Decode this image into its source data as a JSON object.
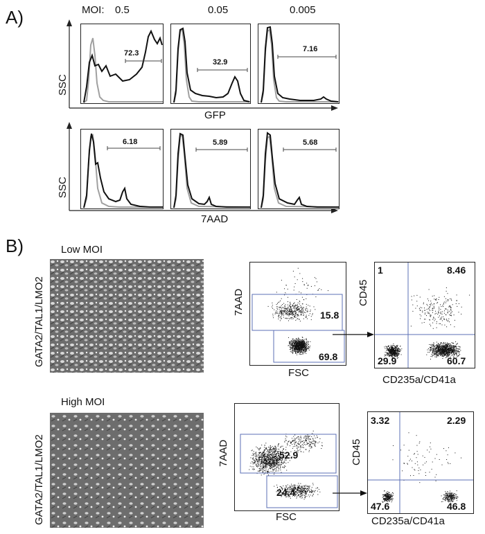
{
  "panel_a": {
    "letter": "A)",
    "moi_label": "MOI:",
    "moi_values": [
      "0.5",
      "0.05",
      "0.005"
    ],
    "y_label": "SSC",
    "row1_xlabel": "GFP",
    "row2_xlabel": "7AAD",
    "row1_gates": [
      "72.3",
      "32.9",
      "7.16"
    ],
    "row2_gates": [
      "6.18",
      "5.89",
      "5.68"
    ]
  },
  "panel_b": {
    "letter": "B)",
    "rotated_label": "GATA2/TAL1/LMO2",
    "rows": [
      {
        "condition": "Low MOI",
        "scatter1": {
          "xlabel": "FSC",
          "ylabel": "7AAD",
          "upper_gate": "15.8",
          "lower_gate": "69.8"
        },
        "scatter2": {
          "xlabel": "CD235a/CD41a",
          "ylabel": "CD45",
          "q_ul": "1",
          "q_ur": "8.46",
          "q_ll": "29.9",
          "q_lr": "60.7"
        }
      },
      {
        "condition": "High MOI",
        "scatter1": {
          "xlabel": "FSC",
          "ylabel": "7AAD",
          "upper_gate": "52.9",
          "lower_gate": "24.4"
        },
        "scatter2": {
          "xlabel": "CD235a/CD41a",
          "ylabel": "CD45",
          "q_ul": "3.32",
          "q_ur": "2.29",
          "q_ll": "47.6",
          "q_lr": "46.8"
        }
      }
    ]
  },
  "colors": {
    "gate": "#5b6fb5",
    "control_trace": "#a0a0a0",
    "sample_trace": "#111111",
    "micrograph": "#6d6d6d"
  }
}
